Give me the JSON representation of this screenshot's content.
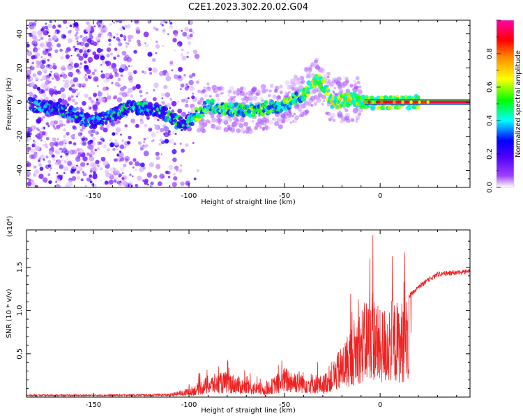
{
  "title": "C2E1.2023.302.20.02.G04",
  "colors": {
    "snr_line": "#ee2222",
    "axis": "#000000",
    "background": "#ffffff",
    "colormap": [
      "#ffffff",
      "#8800ff",
      "#0000ff",
      "#00ffff",
      "#00ff00",
      "#ffff00",
      "#ff8800",
      "#ff0000",
      "#ff00aa"
    ]
  },
  "chart_data": [
    {
      "type": "heatmap",
      "xlabel": "Height of straight line (km)",
      "ylabel": "Frequency (Hz)",
      "xlim": [
        -185,
        47
      ],
      "ylim": [
        -50,
        48
      ],
      "xticks": [
        -150,
        -100,
        -50,
        0
      ],
      "xtick_labels": [
        "-150",
        "-100",
        "-50",
        "0"
      ],
      "yticks": [
        -40,
        -20,
        0,
        20,
        40
      ],
      "ytick_labels": [
        "-40",
        "-20",
        "0",
        "20",
        "40"
      ],
      "grid": false,
      "colorbar": {
        "label": "Normalized spectral amplitude",
        "range": [
          0.0,
          1.0
        ],
        "ticks": [
          0.0,
          0.2,
          0.4,
          0.6,
          0.8
        ],
        "tick_labels": [
          "0.0",
          "0.2",
          "0.4",
          "0.6",
          "0.8"
        ]
      },
      "ridge": {
        "description_points": [
          {
            "x": -180,
            "y": -2
          },
          {
            "x": -165,
            "y": -5
          },
          {
            "x": -150,
            "y": -12
          },
          {
            "x": -130,
            "y": -3
          },
          {
            "x": -115,
            "y": -5
          },
          {
            "x": -103,
            "y": -14
          },
          {
            "x": -90,
            "y": -2
          },
          {
            "x": -70,
            "y": -5
          },
          {
            "x": -50,
            "y": -2
          },
          {
            "x": -40,
            "y": 5
          },
          {
            "x": -32,
            "y": 14
          },
          {
            "x": -25,
            "y": 0
          },
          {
            "x": -15,
            "y": 2
          },
          {
            "x": -5,
            "y": -1
          },
          {
            "x": 5,
            "y": 0
          },
          {
            "x": 20,
            "y": 0
          },
          {
            "x": 47,
            "y": 0
          }
        ]
      }
    },
    {
      "type": "line",
      "xlabel": "Height of straight line (km)",
      "ylabel": "SNR (10 * v/v)",
      "yscale_label": "(x10⁴)",
      "xlim": [
        -185,
        47
      ],
      "ylim": [
        0,
        1.93
      ],
      "xticks": [
        -150,
        -100,
        -50,
        0
      ],
      "xtick_labels": [
        "-150",
        "-100",
        "-50",
        "0"
      ],
      "yticks": [
        0.5,
        1.0,
        1.5
      ],
      "ytick_labels": [
        "0.5",
        "1.0",
        "1.5"
      ],
      "grid": false,
      "series": [
        {
          "envelope": [
            {
              "x": -185,
              "y": 0.02
            },
            {
              "x": -150,
              "y": 0.02
            },
            {
              "x": -110,
              "y": 0.03
            },
            {
              "x": -100,
              "y": 0.1
            },
            {
              "x": -90,
              "y": 0.25
            },
            {
              "x": -80,
              "y": 0.3
            },
            {
              "x": -70,
              "y": 0.2
            },
            {
              "x": -60,
              "y": 0.15
            },
            {
              "x": -50,
              "y": 0.35
            },
            {
              "x": -40,
              "y": 0.3
            },
            {
              "x": -30,
              "y": 0.25
            },
            {
              "x": -20,
              "y": 0.6
            },
            {
              "x": -12,
              "y": 1.0
            },
            {
              "x": -8,
              "y": 1.1
            },
            {
              "x": -5,
              "y": 1.35
            },
            {
              "x": 0,
              "y": 1.0
            },
            {
              "x": 5,
              "y": 1.15
            },
            {
              "x": 10,
              "y": 1.1
            },
            {
              "x": 15,
              "y": 1.2
            },
            {
              "x": 20,
              "y": 1.3
            },
            {
              "x": 30,
              "y": 1.45
            },
            {
              "x": 47,
              "y": 1.48
            }
          ]
        }
      ]
    }
  ]
}
